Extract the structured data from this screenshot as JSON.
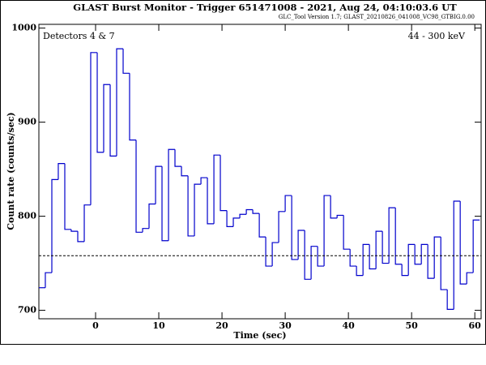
{
  "chart_data": {
    "type": "histogram",
    "title": "GLAST Burst Monitor  -  Trigger 651471008  -  2021, Aug 24, 04:10:03.6 UT",
    "subtitle": "GLC_Tool Version 1.7; GLAST_20210826_041008_VC98_GTBIG.0.00",
    "annotations": [
      "Detectors 4 & 7",
      "44 - 300 keV"
    ],
    "x_label": "Time (sec)",
    "y_label": "Count rate (counts/sec)",
    "color": "#0000cc",
    "background_level": 758,
    "bins": [
      -8.97,
      -7.95,
      -6.92,
      -5.9,
      -4.87,
      -3.85,
      -2.82,
      -1.79,
      -0.77,
      0.26,
      1.28,
      2.31,
      3.33,
      4.36,
      5.38,
      6.41,
      7.44,
      8.46,
      9.49,
      10.51,
      11.54,
      12.56,
      13.59,
      14.62,
      15.64,
      16.67,
      17.69,
      18.72,
      19.74,
      20.77,
      21.79,
      22.82,
      23.85,
      24.87,
      25.9,
      26.92,
      27.95,
      28.97,
      30.0,
      31.03,
      32.05,
      33.08,
      34.1,
      35.13,
      36.15,
      37.18,
      38.21,
      39.23,
      40.26,
      41.28,
      42.31,
      43.33,
      44.36,
      45.38,
      46.41,
      47.44,
      48.46,
      49.49,
      50.51,
      51.54,
      52.56,
      53.59,
      54.62,
      55.64,
      56.67,
      57.69,
      58.72,
      59.74,
      60.77
    ],
    "values": [
      724,
      740,
      839,
      856,
      786,
      784,
      773,
      812,
      974,
      868,
      940,
      864,
      978,
      952,
      881,
      783,
      787,
      813,
      853,
      774,
      871,
      853,
      843,
      779,
      834,
      841,
      792,
      865,
      806,
      789,
      798,
      802,
      807,
      803,
      778,
      747,
      772,
      805,
      822,
      754,
      785,
      733,
      768,
      747,
      822,
      798,
      801,
      765,
      747,
      737,
      770,
      744,
      784,
      750,
      809,
      749,
      737,
      770,
      749,
      770,
      734,
      778,
      722,
      701,
      816,
      728,
      740,
      796
    ],
    "xlim": [
      -8.97,
      61
    ],
    "ylim": [
      691,
      1004
    ],
    "xticks": [
      0,
      10,
      20,
      30,
      40,
      50,
      60
    ],
    "yticks": [
      700,
      800,
      900,
      1000
    ]
  }
}
